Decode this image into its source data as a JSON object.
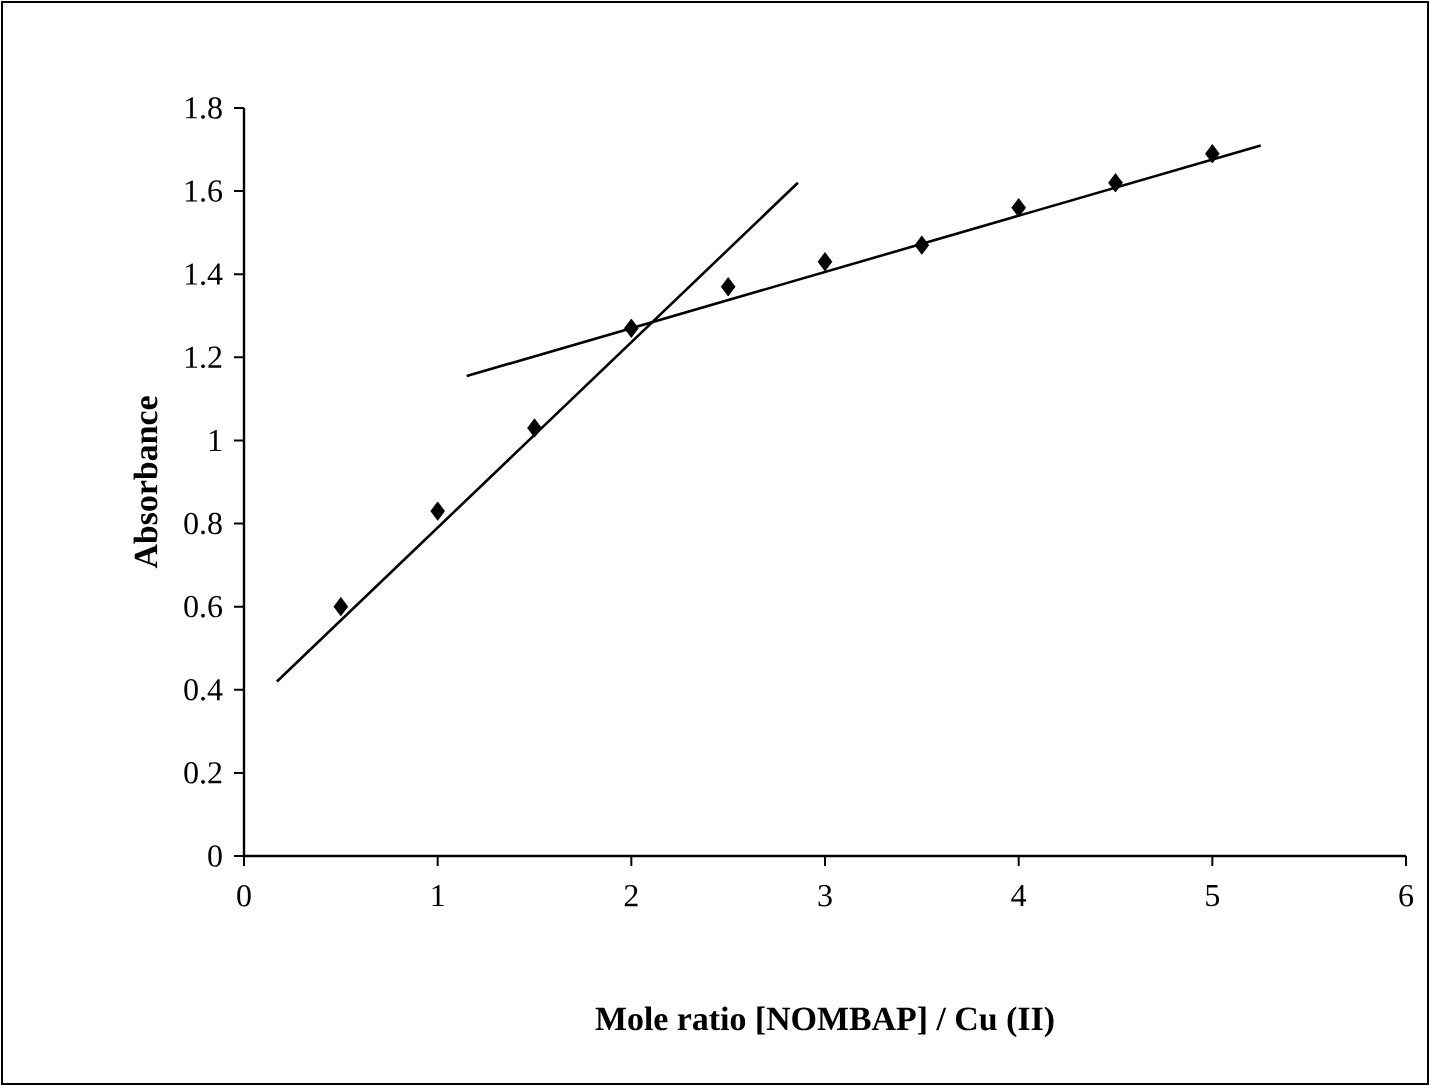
{
  "chart_data": {
    "type": "scatter",
    "xlabel": "Mole ratio [NOMBAP] / Cu (II)",
    "ylabel": "Absorbance",
    "xlim": [
      0,
      6
    ],
    "ylim": [
      0,
      1.8
    ],
    "xticks": [
      0,
      1,
      2,
      3,
      4,
      5,
      6
    ],
    "yticks": [
      0,
      0.2,
      0.4,
      0.6,
      0.8,
      1,
      1.2,
      1.4,
      1.6,
      1.8
    ],
    "grid": false,
    "series": [
      {
        "color": "#000000",
        "marker": "diamond",
        "x": [
          0.5,
          1,
          1.5,
          2,
          2.5,
          3,
          3.5,
          4,
          4.5,
          5
        ],
        "values": [
          0.6,
          0.83,
          1.03,
          1.27,
          1.37,
          1.43,
          1.47,
          1.56,
          1.62,
          1.69
        ]
      },
      {
        "type": "line",
        "color": "#000000",
        "line_style": "solid",
        "marker": "none",
        "x": [
          0.17,
          2.86
        ],
        "values": [
          0.42,
          1.62
        ]
      },
      {
        "type": "line",
        "color": "#000000",
        "line_style": "solid",
        "marker": "none",
        "x": [
          1.15,
          5.25
        ],
        "values": [
          1.155,
          1.71
        ]
      }
    ]
  }
}
